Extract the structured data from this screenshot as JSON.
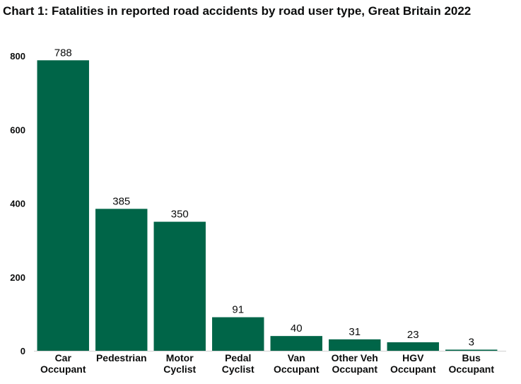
{
  "chart_data": {
    "type": "bar",
    "title": "Chart 1: Fatalities in reported road accidents by road user type, Great Britain 2022",
    "categories": [
      [
        "Car",
        "Occupant"
      ],
      [
        "Pedestrian"
      ],
      [
        "Motor",
        "Cyclist"
      ],
      [
        "Pedal",
        "Cyclist"
      ],
      [
        "Van",
        "Occupant"
      ],
      [
        "Other Veh",
        "Occupant"
      ],
      [
        "HGV",
        "Occupant"
      ],
      [
        "Bus",
        "Occupant"
      ]
    ],
    "values": [
      788,
      385,
      350,
      91,
      40,
      31,
      23,
      3
    ],
    "ylim": [
      0,
      800
    ],
    "yticks": [
      0,
      200,
      400,
      600,
      800
    ],
    "bar_color": "#006548",
    "grid": false,
    "legend": "none",
    "xlabel": "",
    "ylabel": ""
  }
}
